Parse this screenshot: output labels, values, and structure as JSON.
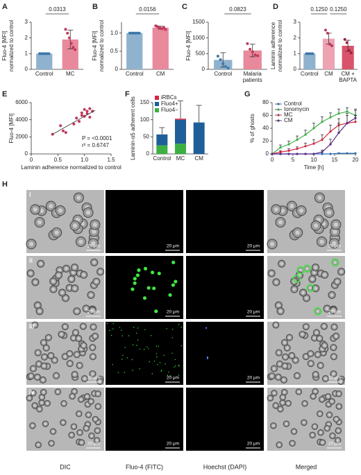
{
  "chart_data": [
    {
      "panel": "A",
      "type": "bar",
      "ylabel": [
        "Fluo-4 [MFI]",
        "normalized to control"
      ],
      "categories": [
        "Control",
        "MC"
      ],
      "values": [
        1,
        1.9
      ],
      "errors": [
        0,
        0.6
      ],
      "colors": [
        "#8fb3cf",
        "#e8899c"
      ],
      "point_colors": [
        "#3f78ab",
        "#c0395a"
      ],
      "points": [
        [
          1,
          1,
          1,
          1,
          1,
          1
        ],
        [
          2.55,
          2.3,
          2.0,
          1.65,
          1.4,
          1.25
        ]
      ],
      "ylim": [
        0,
        3
      ],
      "yticks": [
        0,
        1,
        2,
        3
      ],
      "annotations": [
        "0.0313"
      ]
    },
    {
      "panel": "B",
      "type": "bar",
      "ylabel": [
        "Fluo-4 [MFI]",
        "normalized to control"
      ],
      "categories": [
        "Control",
        "CM"
      ],
      "values": [
        1.0,
        1.15
      ],
      "errors": [
        0.01,
        0.04
      ],
      "colors": [
        "#8fb3cf",
        "#e8899c"
      ],
      "point_colors": [
        "#3f78ab",
        "#c0395a"
      ],
      "points": [
        [
          1,
          1,
          1,
          1,
          1,
          1,
          1
        ],
        [
          1.2,
          1.18,
          1.15,
          1.13,
          1.12,
          1.16,
          1.1
        ]
      ],
      "ylim": [
        0,
        1.3
      ],
      "yticks": [
        0,
        0.5,
        {
          "value": 1,
          "label": "1.0"
        }
      ],
      "annotations": [
        "0.0156"
      ]
    },
    {
      "panel": "C",
      "type": "bar",
      "ylabel": [
        "Fluo-4 [MFI]"
      ],
      "categories": [
        "Control",
        "Malaria patients"
      ],
      "values": [
        300,
        600
      ],
      "errors": [
        230,
        200
      ],
      "colors": [
        "#8fb3cf",
        "#e8899c"
      ],
      "point_colors": [
        "#3f78ab",
        "#c0395a"
      ],
      "points": [
        [
          420,
          310,
          180,
          90,
          40
        ],
        [
          820,
          640,
          560,
          460,
          430
        ]
      ],
      "ylim": [
        0,
        1500
      ],
      "yticks": [
        0,
        500,
        1000,
        1500
      ],
      "annotations": [
        "0.0823"
      ]
    },
    {
      "panel": "D",
      "type": "bar",
      "ylabel": [
        "Laminin adherence",
        "normalized to control"
      ],
      "categories": [
        "Control",
        "CM",
        "CM + BAPTA"
      ],
      "values": [
        1,
        1.95,
        1.5
      ],
      "errors": [
        0,
        0.35,
        0.35
      ],
      "colors": [
        "#8fb3cf",
        "#eea3b3",
        "#d9536b"
      ],
      "point_colors": [
        "#3f78ab",
        "#c0395a",
        "#9e1f3a"
      ],
      "points": [
        [
          1,
          1,
          1,
          1
        ],
        [
          2.5,
          2.3,
          1.6,
          1.5
        ],
        [
          1.9,
          1.7,
          1.2,
          1.05
        ]
      ],
      "ylim": [
        0,
        3
      ],
      "yticks": [
        0,
        1,
        2,
        3
      ],
      "annotations": [
        "0.1250",
        "0.1250"
      ]
    },
    {
      "panel": "E",
      "type": "scatter",
      "xlabel": "Laminin adherence normalized to control",
      "ylabel": [
        "Fluo-4 [MFI]"
      ],
      "x": [
        0.4,
        0.55,
        0.6,
        0.65,
        0.8,
        0.85,
        0.9,
        0.95,
        1.0,
        1.0,
        1.05,
        1.05,
        1.1,
        1.1,
        1.15,
        0.95
      ],
      "y": [
        2300,
        3300,
        2700,
        2500,
        3500,
        4200,
        3800,
        4500,
        5200,
        4400,
        5000,
        4700,
        5300,
        4300,
        5000,
        4800
      ],
      "color": "#c0395a",
      "fit": {
        "x": [
          0.4,
          1.2
        ],
        "y": [
          2300,
          5100
        ]
      },
      "xlim": [
        0,
        1.5
      ],
      "xticks": [
        0,
        0.5,
        {
          "value": 1,
          "label": "1.0"
        },
        1.5
      ],
      "ylim": [
        0,
        6000
      ],
      "yticks": [
        0,
        2000,
        4000,
        6000
      ],
      "annotations": [
        "P = <0.0001",
        "r² = 0.6747"
      ]
    },
    {
      "panel": "F",
      "type": "stacked_bar",
      "ylabel": [
        "Laminin-α5 adherent cells"
      ],
      "categories": [
        "Control",
        "MC",
        "CM"
      ],
      "series": [
        {
          "name": "iRBCs",
          "color": "#d6263f",
          "values": [
            0,
            3,
            0
          ]
        },
        {
          "name": "Fluo4+",
          "color": "#1f5f99",
          "values": [
            32,
            70,
            92
          ]
        },
        {
          "name": "Fluo4−",
          "color": "#3cb043",
          "values": [
            25,
            30,
            0
          ]
        }
      ],
      "errors": [
        20,
        52,
        50
      ],
      "ylim": [
        0,
        150
      ],
      "yticks": [
        0,
        50,
        100,
        150
      ]
    },
    {
      "panel": "G",
      "type": "line",
      "xlabel": "Time [h]",
      "ylabel": [
        "% of ghosts"
      ],
      "x": [
        0,
        2,
        4,
        6,
        8,
        10,
        12,
        14,
        16,
        18,
        20
      ],
      "series": [
        {
          "name": "Control",
          "color": "#2e6fb7",
          "values": [
            0,
            0,
            0,
            0,
            0,
            0,
            0,
            0,
            1,
            1,
            1
          ],
          "errors": [
            0,
            0,
            0,
            0,
            0,
            0,
            0,
            0,
            0,
            0,
            0
          ]
        },
        {
          "name": "Ionomycin",
          "color": "#3cb043",
          "values": [
            0,
            10,
            15,
            22,
            30,
            40,
            50,
            57,
            63,
            66,
            60
          ],
          "errors": [
            0,
            4,
            5,
            6,
            7,
            8,
            8,
            7,
            7,
            6,
            10
          ]
        },
        {
          "name": "MC",
          "color": "#d6263f",
          "values": [
            0,
            3,
            5,
            8,
            12,
            16,
            22,
            35,
            45,
            48,
            50
          ],
          "errors": [
            0,
            2,
            3,
            3,
            5,
            6,
            8,
            10,
            10,
            12,
            10
          ]
        },
        {
          "name": "CM",
          "color": "#5b2a86",
          "values": [
            0,
            0,
            0,
            0,
            0,
            0,
            3,
            15,
            33,
            48,
            56
          ],
          "errors": [
            0,
            0,
            0,
            0,
            0,
            0,
            3,
            8,
            15,
            15,
            12
          ]
        }
      ],
      "xlim": [
        0,
        20
      ],
      "xticks": [
        0,
        5,
        10,
        15,
        20
      ],
      "ylim": [
        0,
        80
      ],
      "yticks": [
        0,
        20,
        40,
        60,
        80
      ]
    }
  ],
  "image_panel": {
    "panel": "H",
    "rows": [
      "i",
      "ii",
      "iii",
      "iv"
    ],
    "columns": [
      "DIC",
      "Fluo-4 (FITC)",
      "Hoechst (DAPI)",
      "Merged"
    ],
    "scale_bar": "20 μm"
  }
}
